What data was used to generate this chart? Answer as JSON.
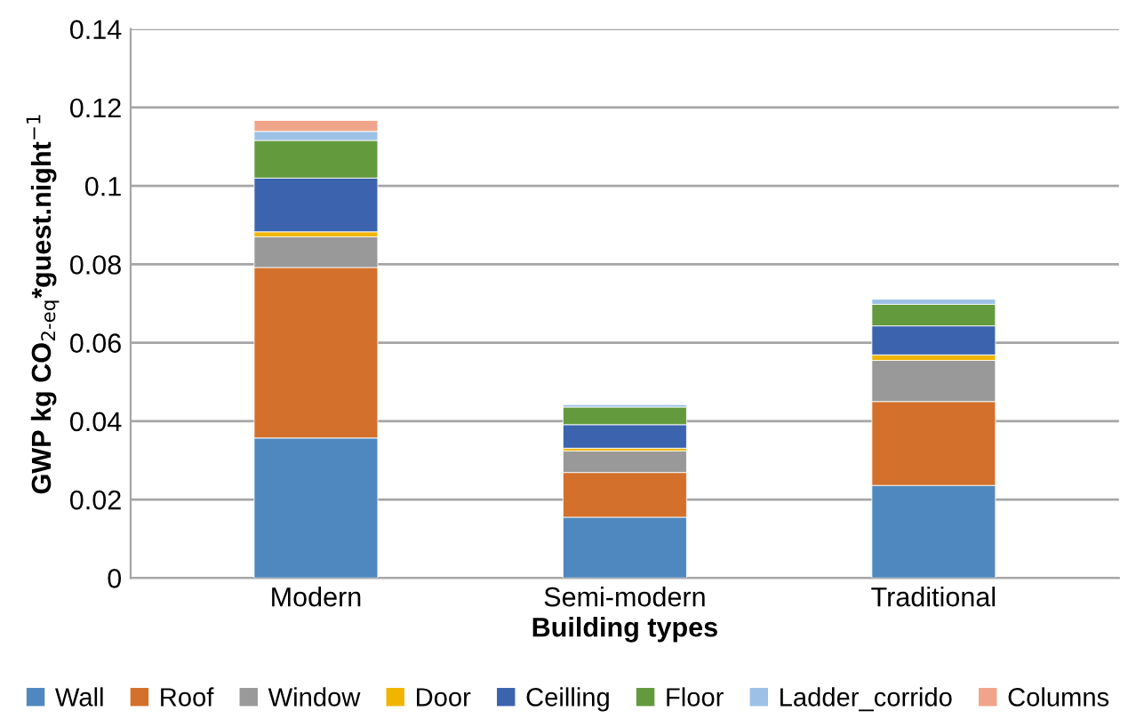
{
  "chart_data": {
    "type": "bar",
    "stacked": true,
    "xlabel": "Building types",
    "ylabel": "GWP kg CO$_{2-eq}$*guest.night$^{−1}$",
    "categories": [
      "Modern",
      "Semi-modern",
      "Traditional"
    ],
    "series": [
      {
        "name": "Wall",
        "color": "#4f88be",
        "values": [
          0.0357,
          0.0155,
          0.0236
        ]
      },
      {
        "name": "Roof",
        "color": "#d3702b",
        "values": [
          0.0435,
          0.0114,
          0.0214
        ]
      },
      {
        "name": "Window",
        "color": "#999999",
        "values": [
          0.0078,
          0.0055,
          0.0105
        ]
      },
      {
        "name": "Door",
        "color": "#f1b400",
        "values": [
          0.0013,
          0.0007,
          0.0014
        ]
      },
      {
        "name": "Ceilling",
        "color": "#3b63ae",
        "values": [
          0.0137,
          0.006,
          0.0074
        ]
      },
      {
        "name": "Floor",
        "color": "#649a3e",
        "values": [
          0.0096,
          0.0045,
          0.0055
        ]
      },
      {
        "name": "Ladder_corrido",
        "color": "#9cc0e6",
        "values": [
          0.0023,
          0.0006,
          0.0013
        ]
      },
      {
        "name": "Columns",
        "color": "#f0a58a",
        "values": [
          0.0028,
          null,
          null
        ]
      }
    ],
    "ylim": [
      0,
      0.14
    ],
    "yticks": [
      0,
      {
        "value": 0.02,
        "label": "0.02"
      },
      {
        "value": 0.04,
        "label": "0.04"
      },
      {
        "value": 0.06,
        "label": "0.06"
      },
      {
        "value": 0.08,
        "label": "0.08"
      },
      0.1,
      0.12,
      0.14
    ],
    "grid": "y",
    "legend": "bottom"
  }
}
